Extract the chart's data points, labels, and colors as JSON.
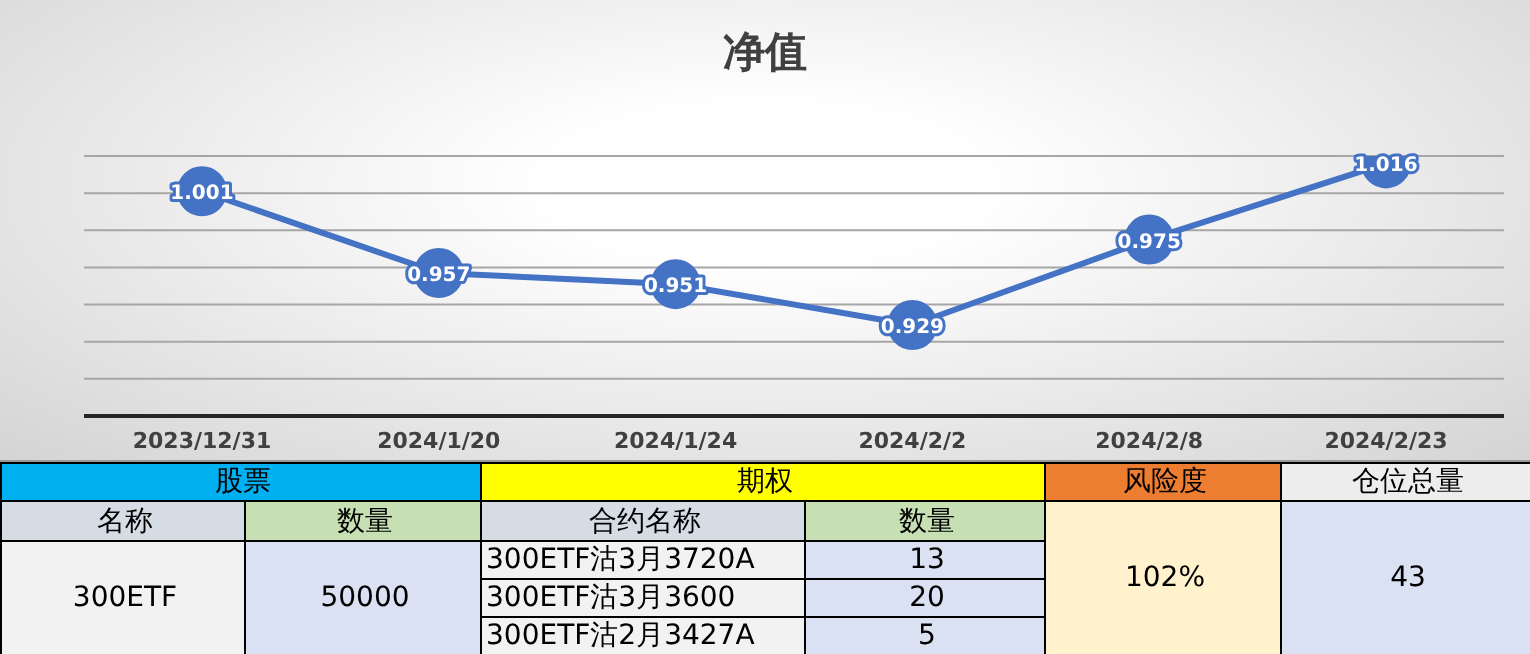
{
  "chart_data": {
    "type": "line",
    "title": "净值",
    "categories": [
      "2023/12/31",
      "2024/1/20",
      "2024/1/24",
      "2024/2/2",
      "2024/2/8",
      "2024/2/23"
    ],
    "series": [
      {
        "color": "#4472c4",
        "values": [
          1.001,
          0.957,
          0.951,
          0.929,
          0.975,
          1.016
        ]
      }
    ],
    "ylim": [
      0.88,
      1.02
    ],
    "yticks": [
      {
        "value": 0.88,
        "label": null
      },
      {
        "value": 0.9,
        "label": null
      },
      {
        "value": 0.92,
        "label": null
      },
      {
        "value": 0.94,
        "label": null
      },
      {
        "value": 0.96,
        "label": null
      },
      {
        "value": 0.98,
        "label": null
      },
      {
        "value": 1.0,
        "label": null
      },
      {
        "value": 1.02,
        "label": null
      }
    ],
    "tick_labels": "x",
    "grid": "y",
    "marker": "circle",
    "line_style": "solid",
    "data_labels": true,
    "legend": false,
    "annotations": [
      "股票",
      "期权",
      "风险度",
      "仓位总量",
      "名称",
      "数量",
      "合约名称",
      "数量",
      "300ETF",
      "50000",
      "300ETF沽3月3720A",
      "13",
      "300ETF沽3月3600",
      "20",
      "300ETF沽2月3427A",
      "5",
      "102%",
      "43"
    ]
  }
}
